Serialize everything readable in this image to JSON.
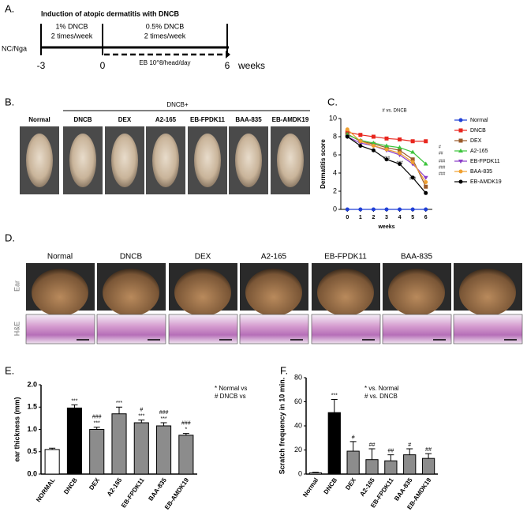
{
  "panel_labels": [
    "A.",
    "B.",
    "C.",
    "D.",
    "E.",
    "F."
  ],
  "timeline": {
    "title": "Induction of atopic dermatitis with DNCB",
    "strain": "NC/Nga",
    "phase1": [
      "1% DNCB",
      "2 times/week"
    ],
    "phase2": [
      "0.5% DNCB",
      "2 times/week"
    ],
    "treatment": "EB 10^8/head/day",
    "ticks": [
      "-3",
      "0",
      "6"
    ],
    "unit": "weeks"
  },
  "photos_b": {
    "group_label": "DNCB+",
    "labels": [
      "Normal",
      "DNCB",
      "DEX",
      "A2-165",
      "EB-FPDK11",
      "BAA-835",
      "EB-AMDK19"
    ]
  },
  "photos_d": {
    "labels": [
      "Normal",
      "DNCB",
      "DEX",
      "A2-165",
      "EB-FPDK11",
      "BAA-835"
    ],
    "rows": [
      "Ear",
      "H&E"
    ]
  },
  "chart_data": [
    {
      "type": "line",
      "title": "# vs. DNCB",
      "xlabel": "weeks",
      "ylabel": "Dermatitis score",
      "x": [
        0,
        1,
        2,
        3,
        4,
        5,
        6
      ],
      "xlim": [
        -0.5,
        6.5
      ],
      "xticks": [
        0,
        1,
        2,
        3,
        4,
        5,
        6
      ],
      "ylim": [
        0,
        10
      ],
      "yticks": [
        0,
        2,
        4,
        6,
        8,
        10
      ],
      "series": [
        {
          "name": "Normal",
          "color": "#1f3fd6",
          "values": [
            0,
            0,
            0,
            0,
            0,
            0,
            0
          ]
        },
        {
          "name": "DNCB",
          "color": "#e8261e",
          "values": [
            8.5,
            8.2,
            8.0,
            7.8,
            7.7,
            7.5,
            7.5
          ]
        },
        {
          "name": "DEX",
          "color": "#9a5a2a",
          "values": [
            8.3,
            7.5,
            7.2,
            6.8,
            6.5,
            5.5,
            2.5
          ]
        },
        {
          "name": "A2-165",
          "color": "#3cc43c",
          "values": [
            8.2,
            7.6,
            7.3,
            7.0,
            6.8,
            6.3,
            5.0
          ]
        },
        {
          "name": "EB-FPDK11",
          "color": "#8a3cc8",
          "values": [
            8.0,
            7.3,
            7.0,
            6.5,
            6.0,
            5.0,
            3.5
          ]
        },
        {
          "name": "BAA-835",
          "color": "#f0a030",
          "values": [
            8.8,
            7.5,
            7.0,
            6.6,
            6.2,
            5.2,
            3.0
          ]
        },
        {
          "name": "EB-AMDK19",
          "color": "#000000",
          "values": [
            8.0,
            7.0,
            6.5,
            5.5,
            5.0,
            3.5,
            1.8
          ]
        }
      ],
      "annotations": [
        "###",
        "###",
        "###",
        "#",
        "##",
        "###",
        "###",
        "###"
      ]
    },
    {
      "type": "bar",
      "ylabel": "ear thickness (mm)",
      "categories": [
        "NORMAL",
        "DNCB",
        "DEX",
        "A2-165",
        "EB-FPDK11",
        "BAA-835",
        "EB-AMDK19"
      ],
      "values": [
        0.55,
        1.48,
        1.0,
        1.35,
        1.15,
        1.08,
        0.87
      ],
      "errors": [
        0.03,
        0.07,
        0.05,
        0.15,
        0.06,
        0.07,
        0.04
      ],
      "colors": [
        "#ffffff",
        "#000000",
        "#8c8c8c",
        "#8c8c8c",
        "#8c8c8c",
        "#8c8c8c",
        "#8c8c8c"
      ],
      "ylim": [
        0,
        2.0
      ],
      "yticks": [
        {
          "value": 0,
          "label": "0.0"
        },
        {
          "value": 0.5,
          "label": "0.5"
        },
        {
          "value": 1.0,
          "label": "1.0"
        },
        {
          "value": 1.5,
          "label": "1.5"
        },
        {
          "value": 2.0,
          "label": "2.0"
        }
      ],
      "sig_labels": [
        null,
        [
          "***"
        ],
        [
          "###",
          "***"
        ],
        [
          "***"
        ],
        [
          "#",
          "***"
        ],
        [
          "###",
          "***"
        ],
        [
          "###",
          "*"
        ]
      ],
      "legend_notes": [
        "* Normal vs",
        "# DNCB vs"
      ]
    },
    {
      "type": "bar",
      "ylabel": "Scratch frequency in 10 min.",
      "categories": [
        "Normal",
        "DNCB",
        "DEX",
        "A2-165",
        "EB-FPDK11",
        "BAA-835",
        "EB-AMDK19"
      ],
      "values": [
        1,
        51,
        19,
        12,
        11,
        16,
        13
      ],
      "errors": [
        0.5,
        11,
        8,
        9,
        5,
        5,
        4
      ],
      "colors": [
        "#ffffff",
        "#000000",
        "#8c8c8c",
        "#8c8c8c",
        "#8c8c8c",
        "#8c8c8c",
        "#8c8c8c"
      ],
      "ylim": [
        0,
        80
      ],
      "yticks": [
        0,
        20,
        40,
        60,
        80
      ],
      "sig_labels": [
        null,
        [
          "***"
        ],
        [
          "#"
        ],
        [
          "##"
        ],
        [
          "##"
        ],
        [
          "#"
        ],
        [
          "##"
        ]
      ],
      "legend_notes": [
        "* vs. Normal",
        "# vs. DNCB"
      ]
    }
  ]
}
